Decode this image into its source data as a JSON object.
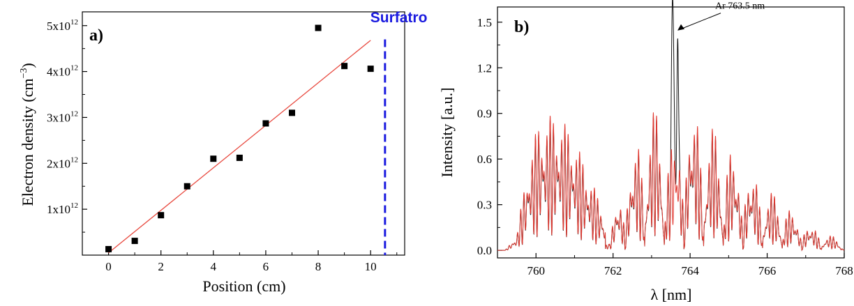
{
  "chart_data": [
    {
      "panel": "a)",
      "type": "scatter",
      "xlabel": "Position (cm)",
      "ylabel": "Electron density (cm",
      "ylabel_exp": "−3",
      "ylabel_close": ")",
      "xlim": [
        -1,
        11.3
      ],
      "ylim": [
        0,
        5300000000000.0
      ],
      "xticks": [
        0,
        2,
        4,
        6,
        8,
        10
      ],
      "xtick_labels": [
        "0",
        "2",
        "4",
        "6",
        "8",
        "10"
      ],
      "yticks": [
        1000000000000.0,
        2000000000000.0,
        3000000000000.0,
        4000000000000.0,
        5000000000000.0
      ],
      "ytick_mantissas": [
        "1x10",
        "2x10",
        "3x10",
        "4x10",
        "5x10"
      ],
      "ytick_exp": "12",
      "x": [
        0,
        1,
        2,
        3,
        4,
        5,
        6,
        7,
        8,
        9,
        10
      ],
      "y": [
        130000000000.0,
        310000000000.0,
        870000000000.0,
        1500000000000.0,
        2100000000000.0,
        2120000000000.0,
        2870000000000.0,
        3100000000000.0,
        4950000000000.0,
        4120000000000.0,
        4060000000000.0
      ],
      "marker_color": "#000000",
      "fit_line": {
        "x": [
          0,
          10
        ],
        "y": [
          50000000000.0,
          4680000000000.0
        ],
        "color": "#e8493f"
      },
      "vline": {
        "x": 10.55,
        "label": "Surfatron",
        "color": "#1a1adf"
      }
    },
    {
      "panel": "b)",
      "type": "line",
      "xlabel": "λ [nm]",
      "ylabel": "Intensity [a.u.]",
      "xlim": [
        759,
        768
      ],
      "ylim": [
        -0.05,
        1.6
      ],
      "xticks": [
        760,
        762,
        764,
        766,
        768
      ],
      "xtick_labels": [
        "760",
        "762",
        "764",
        "766",
        "768"
      ],
      "yticks": [
        0,
        0.3,
        0.6,
        0.9,
        1.2,
        1.5
      ],
      "ytick_labels": [
        "0.0",
        "0.3",
        "0.6",
        "0.9",
        "1.2",
        "1.5"
      ],
      "annotation": {
        "text": "Ar 763.5 nm",
        "x": 763.6,
        "y": 1.45
      },
      "series": [
        {
          "color": "#111111",
          "peaks": [
            {
              "x": 763.55,
              "y": 1.49,
              "w": 0.035
            },
            {
              "x": 763.68,
              "y": 1.06,
              "w": 0.03
            }
          ]
        },
        {
          "color": "#e23a32",
          "envelope": [
            [
              759.2,
              0.0
            ],
            [
              759.5,
              0.1
            ],
            [
              759.8,
              0.6
            ],
            [
              760.1,
              0.87
            ],
            [
              760.5,
              0.9
            ],
            [
              760.9,
              0.8
            ],
            [
              761.3,
              0.55
            ],
            [
              761.7,
              0.3
            ],
            [
              761.9,
              0.05
            ],
            [
              762.1,
              0.35
            ],
            [
              762.5,
              0.65
            ],
            [
              762.8,
              0.85
            ],
            [
              763.2,
              0.98
            ],
            [
              763.45,
              0.7
            ],
            [
              763.8,
              0.9
            ],
            [
              764.0,
              0.99
            ],
            [
              764.5,
              0.85
            ],
            [
              765.0,
              0.7
            ],
            [
              765.5,
              0.57
            ],
            [
              766.0,
              0.42
            ],
            [
              766.5,
              0.3
            ],
            [
              767.0,
              0.19
            ],
            [
              767.5,
              0.11
            ],
            [
              767.9,
              0.08
            ],
            [
              768.0,
              0.0
            ]
          ],
          "line_spacing": 0.085
        }
      ]
    }
  ]
}
